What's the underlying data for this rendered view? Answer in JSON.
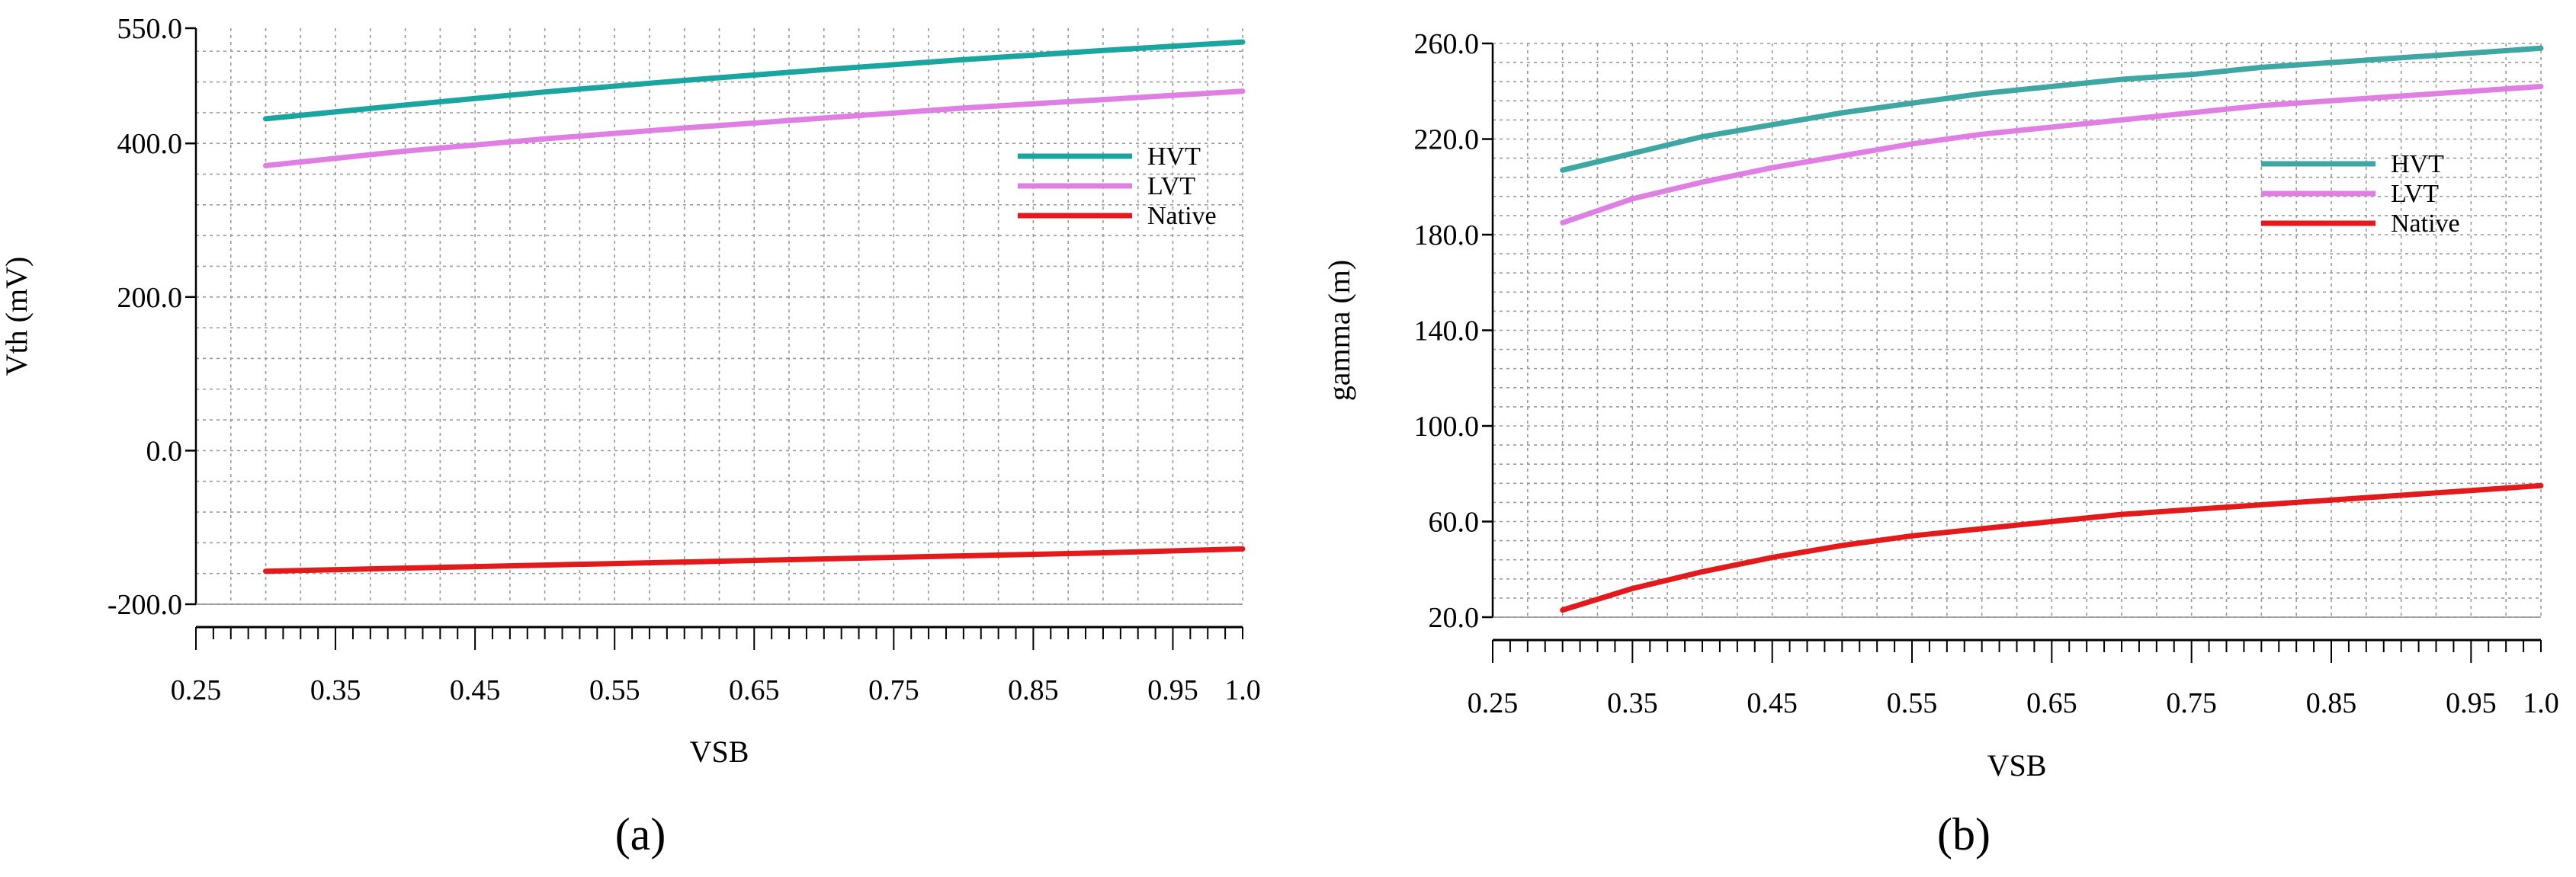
{
  "chart_data": [
    {
      "type": "line",
      "caption": "(a)",
      "xlabel": "VSB",
      "ylabel": "Vth (mV)",
      "xlim": [
        0.25,
        1.0
      ],
      "ylim": [
        -200,
        550
      ],
      "x_ticks": [
        0.25,
        0.35,
        0.45,
        0.55,
        0.65,
        0.75,
        0.85,
        0.95,
        1.0
      ],
      "x_tick_labels": [
        "0.25",
        "0.35",
        "0.45",
        "0.55",
        "0.65",
        "0.75",
        "0.85",
        "0.95",
        "1.0"
      ],
      "y_ticks": [
        -200,
        0,
        200,
        400,
        550
      ],
      "y_tick_labels": [
        "-200.0",
        "0.0",
        "200.0",
        "400.0",
        "550.0"
      ],
      "grid": true,
      "legend_position": "right",
      "series": [
        {
          "name": "HVT",
          "color": "#1aa5a0",
          "x": [
            0.3,
            0.4,
            0.5,
            0.6,
            0.7,
            0.8,
            0.9,
            1.0
          ],
          "values": [
            432,
            450,
            467,
            482,
            496,
            509,
            521,
            532
          ]
        },
        {
          "name": "LVT",
          "color": "#e07fe3",
          "x": [
            0.3,
            0.4,
            0.5,
            0.6,
            0.7,
            0.8,
            0.9,
            1.0
          ],
          "values": [
            371,
            390,
            406,
            420,
            433,
            446,
            457,
            468
          ]
        },
        {
          "name": "Native",
          "color": "#e31a1c",
          "x": [
            0.3,
            0.4,
            0.5,
            0.6,
            0.7,
            0.8,
            0.9,
            1.0
          ],
          "values": [
            -157,
            -153,
            -149,
            -145,
            -141,
            -137,
            -133,
            -128
          ]
        }
      ]
    },
    {
      "type": "line",
      "caption": "(b)",
      "xlabel": "VSB",
      "ylabel": "gamma (m)",
      "xlim": [
        0.25,
        1.0
      ],
      "ylim": [
        20,
        260
      ],
      "x_ticks": [
        0.25,
        0.35,
        0.45,
        0.55,
        0.65,
        0.75,
        0.85,
        0.95,
        1.0
      ],
      "x_tick_labels": [
        "0.25",
        "0.35",
        "0.45",
        "0.55",
        "0.65",
        "0.75",
        "0.85",
        "0.95",
        "1.0"
      ],
      "y_ticks": [
        20,
        60,
        100,
        140,
        180,
        220,
        260
      ],
      "y_tick_labels": [
        "20.0",
        "60.0",
        "100.0",
        "140.0",
        "180.0",
        "220.0",
        "260.0"
      ],
      "grid": true,
      "legend_position": "right",
      "series": [
        {
          "name": "HVT",
          "color": "#3fa7a3",
          "x": [
            0.3,
            0.35,
            0.4,
            0.45,
            0.5,
            0.55,
            0.6,
            0.65,
            0.7,
            0.75,
            0.8,
            0.85,
            0.9,
            0.95,
            1.0
          ],
          "values": [
            207,
            214,
            221,
            226,
            231,
            235,
            239,
            242,
            245,
            247,
            250,
            252,
            254,
            256,
            258
          ]
        },
        {
          "name": "LVT",
          "color": "#e07fe3",
          "x": [
            0.3,
            0.35,
            0.4,
            0.45,
            0.5,
            0.55,
            0.6,
            0.65,
            0.7,
            0.75,
            0.8,
            0.85,
            0.9,
            0.95,
            1.0
          ],
          "values": [
            185,
            195,
            202,
            208,
            213,
            218,
            222,
            225,
            228,
            231,
            234,
            236,
            238,
            240,
            242
          ]
        },
        {
          "name": "Native",
          "color": "#e31a1c",
          "x": [
            0.3,
            0.35,
            0.4,
            0.45,
            0.5,
            0.55,
            0.6,
            0.65,
            0.7,
            0.75,
            0.8,
            0.85,
            0.9,
            0.95,
            1.0
          ],
          "values": [
            23,
            32,
            39,
            45,
            50,
            54,
            57,
            60,
            63,
            65,
            67,
            69,
            71,
            73,
            75
          ]
        }
      ]
    }
  ]
}
